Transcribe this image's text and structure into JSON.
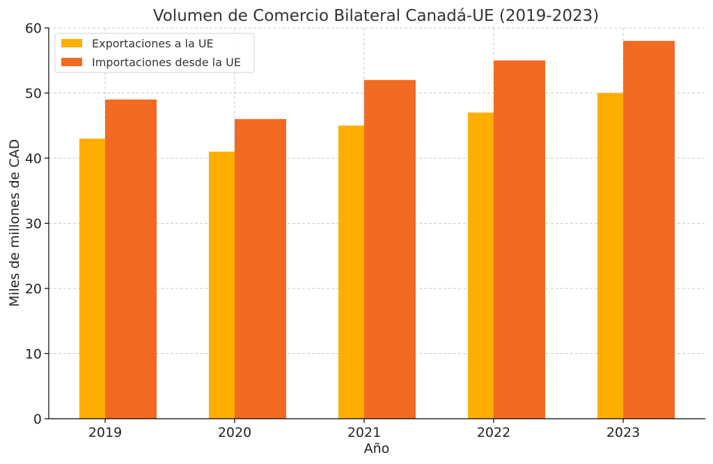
{
  "chart_data": {
    "type": "bar",
    "title": "Volumen de Comercio Bilateral Canadá-UE (2019-2023)",
    "xlabel": "Año",
    "ylabel": "Miles de millones de CAD",
    "categories": [
      "2019",
      "2020",
      "2021",
      "2022",
      "2023"
    ],
    "series": [
      {
        "name": "Exportaciones a la UE",
        "values": [
          43,
          41,
          45,
          47,
          50
        ],
        "color": "#FFAE00"
      },
      {
        "name": "Importaciones desde la UE",
        "values": [
          49,
          46,
          52,
          55,
          58
        ],
        "color": "#F26A21"
      }
    ],
    "ylim": [
      0,
      60
    ],
    "yticks": [
      0,
      10,
      20,
      30,
      40,
      50,
      60
    ],
    "grid": true,
    "legend_position": "top-left"
  }
}
